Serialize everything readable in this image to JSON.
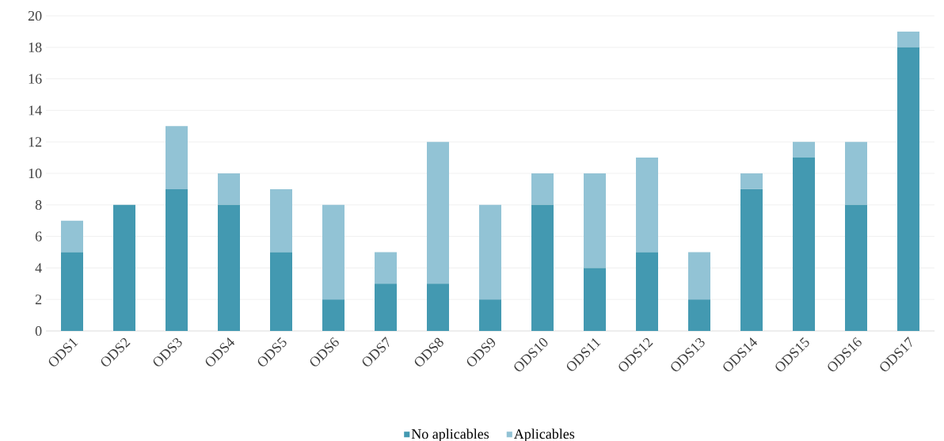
{
  "chart_data": {
    "type": "bar",
    "stacked": true,
    "categories": [
      "ODS1",
      "ODS2",
      "ODS3",
      "ODS4",
      "ODS5",
      "ODS6",
      "ODS7",
      "ODS8",
      "ODS9",
      "ODS10",
      "ODS11",
      "ODS12",
      "ODS13",
      "ODS14",
      "ODS15",
      "ODS16",
      "ODS17"
    ],
    "series": [
      {
        "name": "No aplicables",
        "color": "#4399b1",
        "values": [
          5,
          8,
          9,
          8,
          5,
          2,
          3,
          3,
          2,
          8,
          4,
          5,
          2,
          9,
          11,
          8,
          18
        ]
      },
      {
        "name": "Aplicables",
        "color": "#92c3d5",
        "values": [
          2,
          0,
          4,
          2,
          4,
          6,
          2,
          9,
          6,
          2,
          6,
          6,
          3,
          1,
          1,
          4,
          1
        ]
      }
    ],
    "ylim": [
      0,
      20
    ],
    "yticks": [
      0,
      2,
      4,
      6,
      8,
      10,
      12,
      14,
      16,
      18,
      20
    ],
    "grid": "y",
    "legend": "bottom"
  }
}
